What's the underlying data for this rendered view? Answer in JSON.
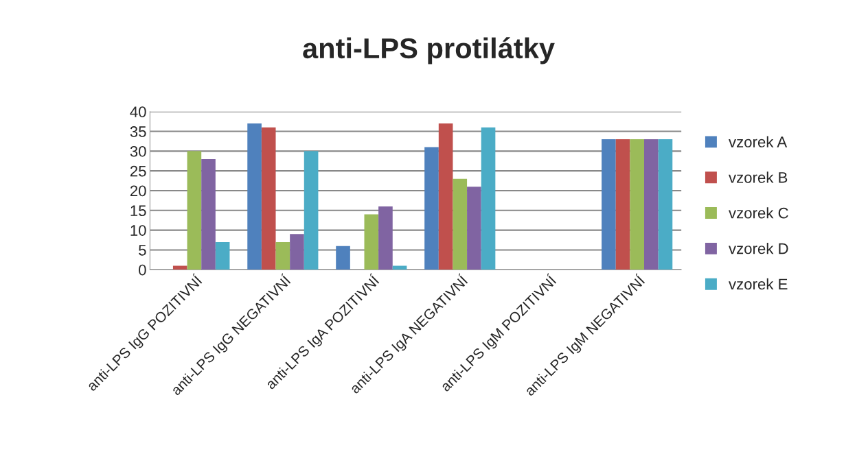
{
  "chart_data": {
    "type": "bar",
    "title": "anti-LPS protilátky",
    "categories": [
      "anti-LPS IgG POZITIVNÍ",
      "anti-LPS IgG NEGATIVNÍ",
      "anti-LPS IgA POZITIVNÍ",
      "anti-LPS IgA NEGATIVNÍ",
      "anti-LPS IgM POZITIVNÍ",
      "anti-LPS IgM NEGATIVNÍ"
    ],
    "series": [
      {
        "name": "vzorek A",
        "color": "#4f81bd",
        "values": [
          0,
          37,
          6,
          31,
          0,
          33
        ]
      },
      {
        "name": "vzorek B",
        "color": "#c0504d",
        "values": [
          1,
          36,
          0,
          37,
          0,
          33
        ]
      },
      {
        "name": "vzorek C",
        "color": "#9bbb59",
        "values": [
          30,
          7,
          14,
          23,
          0,
          33
        ]
      },
      {
        "name": "vzorek D",
        "color": "#8064a2",
        "values": [
          28,
          9,
          16,
          21,
          0,
          33
        ]
      },
      {
        "name": "vzorek E",
        "color": "#4bacc6",
        "values": [
          7,
          30,
          1,
          36,
          0,
          33
        ]
      }
    ],
    "ylim": [
      0,
      40
    ],
    "yticks": [
      0,
      5,
      10,
      15,
      20,
      25,
      30,
      35,
      40
    ],
    "grid": "y",
    "legend": "right"
  }
}
